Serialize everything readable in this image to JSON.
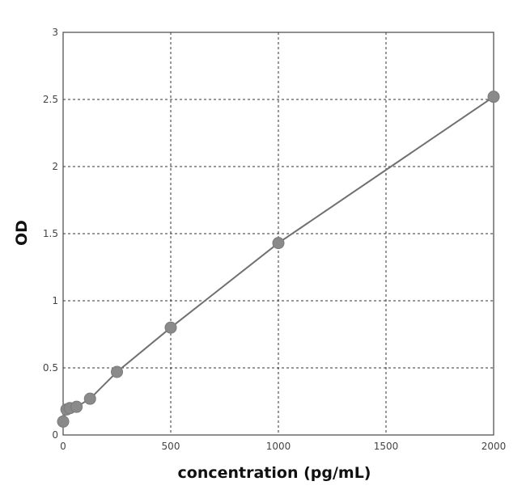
{
  "chart_data": {
    "type": "line",
    "title": "",
    "xlabel": "concentration (pg/mL)",
    "ylabel": "OD",
    "xlim": [
      0,
      2000
    ],
    "ylim": [
      0,
      3
    ],
    "xticks": [
      0,
      500,
      1000,
      1500,
      2000
    ],
    "yticks": [
      0,
      0.5,
      1,
      1.5,
      2,
      2.5,
      3
    ],
    "xtick_labels": [
      "0",
      "500",
      "1000",
      "1500",
      "2000"
    ],
    "ytick_labels": [
      "0",
      "0.5",
      "1",
      "1.5",
      "2",
      "2.5",
      "3"
    ],
    "grid": true,
    "legend": "none",
    "line_color": "#707070",
    "marker_color": "#8a8a8a",
    "series": [
      {
        "x": [
          0,
          15.6,
          31.25,
          62.5,
          125,
          250,
          500,
          1000,
          2000
        ],
        "y": [
          0.1,
          0.19,
          0.2,
          0.21,
          0.27,
          0.47,
          0.8,
          1.43,
          2.52
        ]
      }
    ]
  }
}
